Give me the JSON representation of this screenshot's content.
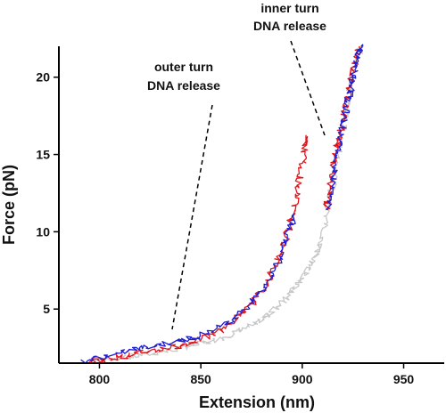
{
  "chart_data": {
    "type": "line",
    "title": "",
    "xlabel": "Extension (nm)",
    "ylabel": "Force (pN)",
    "xlim": [
      780,
      970
    ],
    "ylim": [
      1.5,
      22
    ],
    "x_ticks": [
      800,
      850,
      900,
      950
    ],
    "y_ticks": [
      5,
      10,
      15,
      20
    ],
    "x_tick_labels": [
      "800",
      "850",
      "900",
      "950"
    ],
    "y_tick_labels": [
      "5",
      "10",
      "15",
      "20"
    ],
    "grid": false,
    "legend": "none",
    "series": [
      {
        "color": "#c8c8c8",
        "x": [
          798,
          815,
          830,
          845,
          858,
          868,
          876,
          883,
          889,
          894,
          899,
          903,
          907,
          910,
          912,
          915,
          918,
          920,
          922,
          924,
          926,
          929
        ],
        "y": [
          1.7,
          1.9,
          2.2,
          2.6,
          3.0,
          3.5,
          4.0,
          4.6,
          5.3,
          6.0,
          6.8,
          7.6,
          8.5,
          9.5,
          11.0,
          13.0,
          15.0,
          16.5,
          18.0,
          19.5,
          21.0,
          22.0
        ]
      },
      {
        "color": "#e0161b",
        "x": [
          795,
          805,
          815,
          825,
          835,
          845,
          855,
          864,
          872,
          879,
          885,
          890,
          894,
          897,
          899,
          901,
          902
        ],
        "y": [
          1.6,
          1.8,
          2.0,
          2.3,
          2.5,
          2.8,
          3.3,
          4.0,
          4.9,
          6.0,
          7.3,
          8.8,
          10.5,
          12.2,
          13.8,
          15.3,
          16.2
        ]
      },
      {
        "color": "#1f1fd2",
        "x": [
          790,
          805,
          818,
          830,
          842,
          854,
          864,
          872,
          879,
          885,
          890,
          894,
          896
        ],
        "y": [
          1.6,
          2.0,
          2.4,
          2.7,
          3.0,
          3.5,
          4.2,
          5.0,
          6.0,
          7.2,
          8.6,
          10.3,
          11.2
        ]
      },
      {
        "color": "#e0161b",
        "x": [
          912,
          913,
          915,
          917,
          918,
          920,
          922,
          924,
          926,
          928
        ],
        "y": [
          11.5,
          12.5,
          14.0,
          15.5,
          16.0,
          17.2,
          18.5,
          19.8,
          21.0,
          22.0
        ]
      },
      {
        "color": "#1f1fd2",
        "x": [
          913,
          915,
          917,
          919,
          921,
          923,
          925,
          927,
          929
        ],
        "y": [
          11.5,
          13.0,
          14.8,
          16.0,
          17.5,
          18.8,
          20.0,
          21.2,
          22.0
        ]
      }
    ],
    "annotations": [
      {
        "lines": [
          "outer turn",
          "DNA release"
        ]
      },
      {
        "lines": [
          "inner turn",
          "DNA release"
        ]
      }
    ]
  }
}
